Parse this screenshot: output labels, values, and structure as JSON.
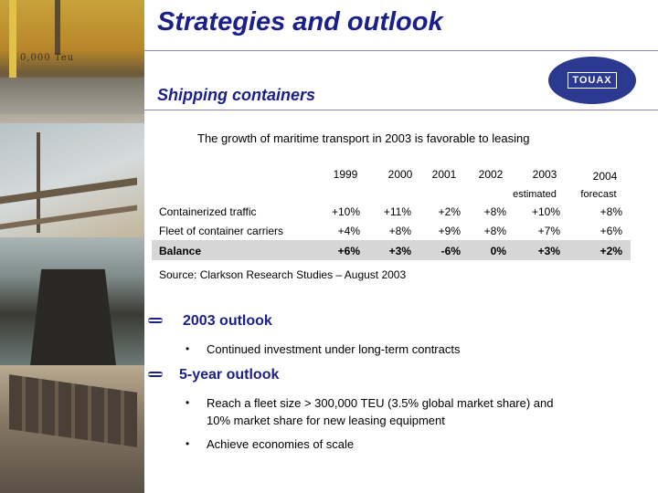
{
  "slide": {
    "title": "Strategies and outlook",
    "subtitle": "Shipping containers",
    "intro": "The growth of maritime transport in 2003 is favorable to leasing",
    "photo_caption": "0,000 Teu"
  },
  "logo": {
    "text": "TOUAX",
    "color": "#2b3990"
  },
  "table": {
    "years": [
      "1999",
      "2000",
      "2001",
      "2002",
      "2003",
      "2004"
    ],
    "notes": {
      "2003": "estimated",
      "2004": "forecast"
    },
    "rows": [
      {
        "label": "Containerized traffic",
        "values": [
          "+10%",
          "+11%",
          "+2%",
          "+8%",
          "+10%",
          "+8%"
        ]
      },
      {
        "label": "Fleet of container carriers",
        "values": [
          "+4%",
          "+8%",
          "+9%",
          "+8%",
          "+7%",
          "+6%"
        ]
      },
      {
        "label": "Balance",
        "values": [
          "+6%",
          "+3%",
          "-6%",
          "0%",
          "+3%",
          "+2%"
        ]
      }
    ]
  },
  "source": "Source: Clarkson Research Studies – August 2003",
  "sections": [
    {
      "heading": "2003 outlook",
      "points": [
        "Continued investment under long-term contracts"
      ]
    },
    {
      "heading": "5-year outlook",
      "points": [
        "Reach a fleet size > 300,000 TEU (3.5% global market share) and",
        "10% market share for new leasing equipment",
        "Achieve economies of scale"
      ]
    }
  ],
  "colors": {
    "accent": "#1b1f8a",
    "balance_band": "#d6d6d6"
  }
}
